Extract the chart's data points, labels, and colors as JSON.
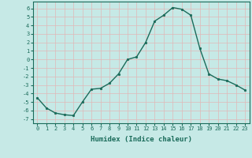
{
  "x": [
    0,
    1,
    2,
    3,
    4,
    5,
    6,
    7,
    8,
    9,
    10,
    11,
    12,
    13,
    14,
    15,
    16,
    17,
    18,
    19,
    20,
    21,
    22,
    23
  ],
  "y": [
    -4.5,
    -5.7,
    -6.3,
    -6.5,
    -6.6,
    -5.0,
    -3.5,
    -3.4,
    -2.8,
    -1.7,
    0.0,
    0.3,
    2.0,
    4.5,
    5.2,
    6.1,
    5.9,
    5.2,
    1.3,
    -1.7,
    -2.3,
    -2.5,
    -3.0,
    -3.6
  ],
  "line_color": "#1a6b5a",
  "marker": "o",
  "markersize": 1.8,
  "linewidth": 1.0,
  "xlabel": "Humidex (Indice chaleur)",
  "xlabel_fontsize": 6.5,
  "ytick_labels": [
    "6",
    "5",
    "4",
    "3",
    "2",
    "1",
    "0",
    "-1",
    "-2",
    "-3",
    "-4",
    "-5",
    "-6",
    "-7"
  ],
  "ytick_vals": [
    6,
    5,
    4,
    3,
    2,
    1,
    0,
    -1,
    -2,
    -3,
    -4,
    -5,
    -6,
    -7
  ],
  "xlim": [
    -0.5,
    23.5
  ],
  "ylim": [
    -7.5,
    6.8
  ],
  "bg_color": "#c6e9e6",
  "grid_color": "#e0b8b8",
  "tick_color": "#1a6b5a",
  "tick_fontsize": 5.0
}
